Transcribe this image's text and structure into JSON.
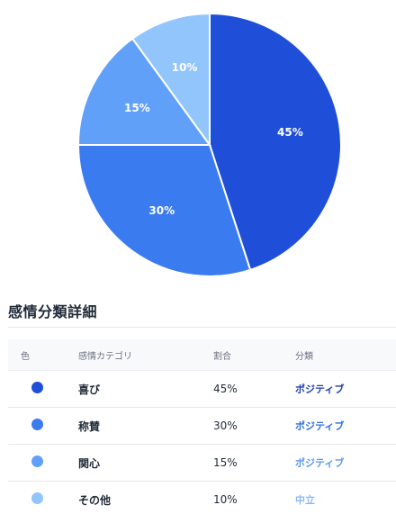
{
  "chart_data": {
    "type": "pie",
    "slices": [
      {
        "label": "喜び",
        "value": 45,
        "color": "#1f4fd8",
        "text": "45%"
      },
      {
        "label": "称賛",
        "value": 30,
        "color": "#3b7bf0",
        "text": "30%"
      },
      {
        "label": "関心",
        "value": 15,
        "color": "#60a0f8",
        "text": "15%"
      },
      {
        "label": "その他",
        "value": 10,
        "color": "#93c5fd",
        "text": "10%"
      }
    ]
  },
  "details": {
    "title": "感情分類詳細",
    "headers": {
      "color": "色",
      "category": "感情カテゴリ",
      "ratio": "割合",
      "classification": "分類"
    },
    "rows": [
      {
        "category": "喜び",
        "ratio": "45%",
        "classification": "ポジティブ",
        "dot_color": "#1f4fd8",
        "class_color": "#1e40af"
      },
      {
        "category": "称賛",
        "ratio": "30%",
        "classification": "ポジティブ",
        "dot_color": "#3b7bf0",
        "class_color": "#2f6fe0"
      },
      {
        "category": "関心",
        "ratio": "15%",
        "classification": "ポジティブ",
        "dot_color": "#60a0f8",
        "class_color": "#5b97ee"
      },
      {
        "category": "その他",
        "ratio": "10%",
        "classification": "中立",
        "dot_color": "#93c5fd",
        "class_color": "#8ab8f5"
      }
    ]
  }
}
